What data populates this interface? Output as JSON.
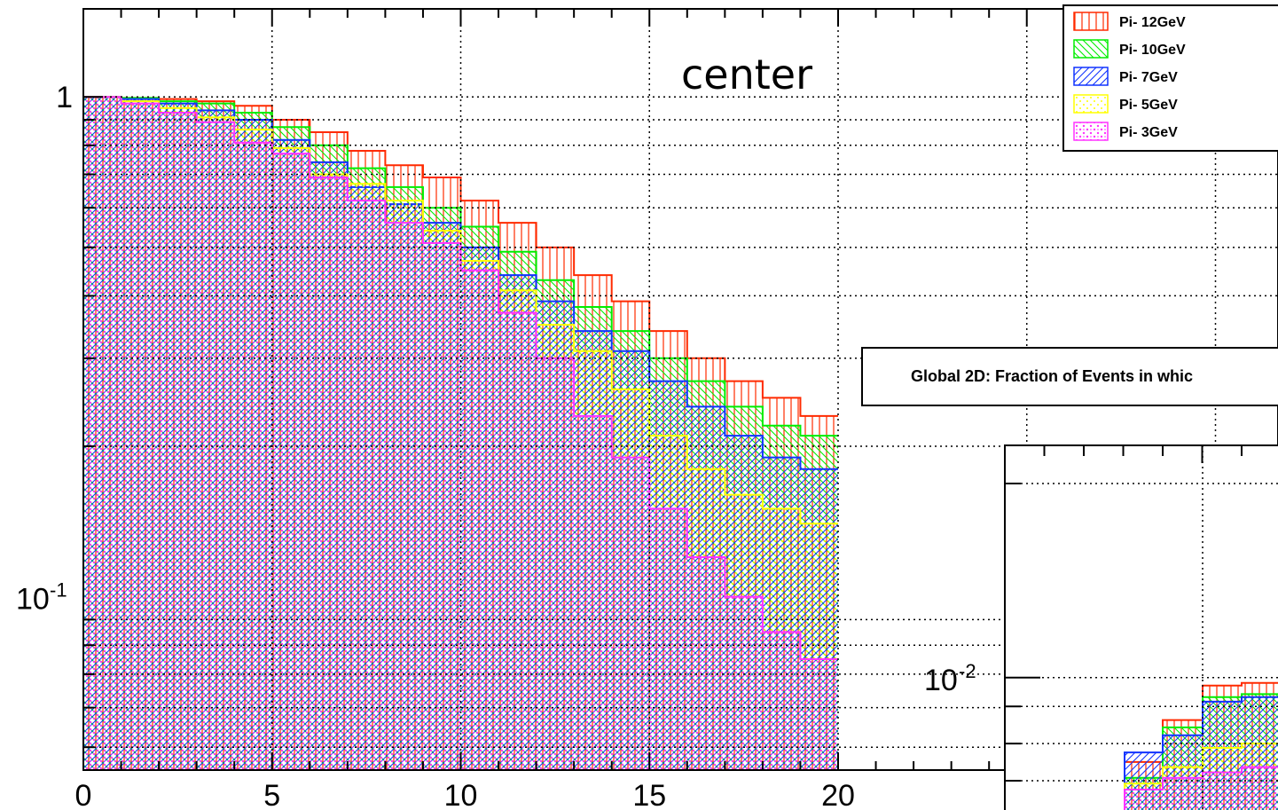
{
  "colors": {
    "Pi- 12GeV": "#ff2a00",
    "Pi- 10GeV": "#00ee00",
    "Pi- 7GeV": "#1133ff",
    "Pi- 5GeV": "#ffff00",
    "Pi- 3GeV": "#ff33ff"
  },
  "chart_data": [
    {
      "type": "bar",
      "histogram": true,
      "title": "center",
      "xlabel": "",
      "ylabel": "",
      "y_scale": "log",
      "xlim": [
        0,
        20
      ],
      "ylim": [
        0.045,
        1.5
      ],
      "grid": true,
      "x_ticks": [
        {
          "value": 0,
          "label": "0"
        },
        {
          "value": 5,
          "label": "5"
        },
        {
          "value": 10,
          "label": "10"
        },
        {
          "value": 15,
          "label": "15"
        },
        {
          "value": 20,
          "label": "20"
        }
      ],
      "y_ticks": [
        {
          "value": 1,
          "label": "1",
          "base": "",
          "exp": ""
        },
        {
          "value": 0.1,
          "label": "",
          "base": "10",
          "exp": "-1"
        }
      ],
      "legend_position": "top-right",
      "bin_edges": [
        0,
        1,
        2,
        3,
        4,
        5,
        6,
        7,
        8,
        9,
        10,
        11,
        12,
        13,
        14,
        15,
        16,
        17,
        18,
        19,
        20
      ],
      "series": [
        {
          "name": "Pi- 12GeV",
          "fill": "vertical-lines",
          "values": [
            1.0,
            0.995,
            0.99,
            0.98,
            0.96,
            0.9,
            0.85,
            0.78,
            0.73,
            0.69,
            0.62,
            0.56,
            0.5,
            0.44,
            0.39,
            0.34,
            0.3,
            0.27,
            0.25,
            0.23
          ]
        },
        {
          "name": "Pi- 10GeV",
          "fill": "backslash-hatch",
          "values": [
            1.0,
            0.995,
            0.98,
            0.97,
            0.93,
            0.87,
            0.8,
            0.72,
            0.66,
            0.6,
            0.55,
            0.49,
            0.43,
            0.38,
            0.34,
            0.3,
            0.27,
            0.24,
            0.22,
            0.21
          ]
        },
        {
          "name": "Pi- 7GeV",
          "fill": "slash-hatch",
          "values": [
            1.0,
            0.99,
            0.97,
            0.94,
            0.9,
            0.82,
            0.74,
            0.66,
            0.61,
            0.56,
            0.5,
            0.44,
            0.39,
            0.34,
            0.31,
            0.27,
            0.24,
            0.21,
            0.19,
            0.18
          ]
        },
        {
          "name": "Pi- 5GeV",
          "fill": "dots",
          "values": [
            1.0,
            0.98,
            0.95,
            0.91,
            0.86,
            0.79,
            0.7,
            0.67,
            0.62,
            0.54,
            0.47,
            0.41,
            0.35,
            0.31,
            0.26,
            0.21,
            0.18,
            0.16,
            0.15,
            0.14
          ]
        },
        {
          "name": "Pi- 3GeV",
          "fill": "dense-dots",
          "values": [
            1.0,
            0.97,
            0.93,
            0.89,
            0.81,
            0.77,
            0.69,
            0.62,
            0.56,
            0.51,
            0.45,
            0.37,
            0.3,
            0.23,
            0.19,
            0.15,
            0.12,
            0.1,
            0.085,
            0.075
          ]
        }
      ]
    },
    {
      "type": "bar",
      "histogram": true,
      "title": "Global 2D: Fraction of Events in whic",
      "xlabel": "",
      "ylabel": "",
      "y_scale": "log",
      "grid": true,
      "y_ticks": [
        {
          "value": 0.01,
          "label": "",
          "base": "10",
          "exp": "-2"
        }
      ],
      "visible_series_note": "",
      "series": [
        {
          "name": "Pi- 12GeV",
          "values": [
            0.0052,
            0.0072,
            0.0094,
            0.0096
          ]
        },
        {
          "name": "Pi- 10GeV",
          "values": [
            0.0046,
            0.0068,
            0.0086,
            0.0088
          ]
        },
        {
          "name": "Pi- 7GeV",
          "values": [
            0.0056,
            0.0064,
            0.0083,
            0.0086
          ]
        },
        {
          "name": "Pi- 5GeV",
          "values": [
            0.0044,
            0.005,
            0.0058,
            0.006
          ]
        },
        {
          "name": "Pi- 3GeV",
          "values": [
            0.0042,
            0.0046,
            0.0048,
            0.005
          ]
        }
      ]
    }
  ],
  "legend": [
    {
      "label": "Pi- 12GeV"
    },
    {
      "label": "Pi- 10GeV"
    },
    {
      "label": "Pi- 7GeV"
    },
    {
      "label": "Pi- 5GeV"
    },
    {
      "label": "Pi- 3GeV"
    }
  ],
  "overlay_title": "Global 2D: Fraction of Events in whic"
}
